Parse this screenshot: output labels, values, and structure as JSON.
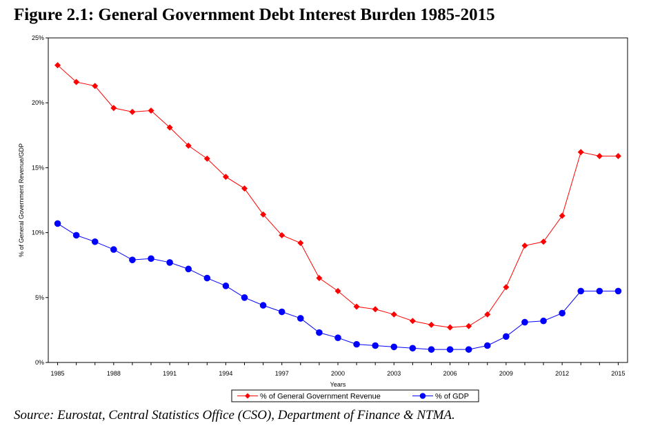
{
  "figure": {
    "title": "Figure 2.1: General Government Debt Interest Burden 1985-2015",
    "source": "Source: Eurostat, Central Statistics Office (CSO), Department of Finance & NTMA."
  },
  "colors": {
    "revenue": "#ff0000",
    "gdp": "#0000ff",
    "axis": "#000000"
  },
  "chart_data": {
    "type": "line",
    "title": "General Government Debt Interest Burden 1985-2015",
    "xlabel": "Years",
    "ylabel": "% of General Government Revenue/GDP",
    "ylim": [
      0,
      25
    ],
    "yticks": [
      0,
      5,
      10,
      15,
      20,
      25
    ],
    "ytick_labels": [
      "0%",
      "5%",
      "10%",
      "15%",
      "20%",
      "25%"
    ],
    "xticks": [
      1985,
      1988,
      1991,
      1994,
      1997,
      2000,
      2003,
      2006,
      2009,
      2012,
      2015
    ],
    "xtick_labels": [
      "1985",
      "1988",
      "1991",
      "1994",
      "1997",
      "2000",
      "2003",
      "2006",
      "2009",
      "2012",
      "2015"
    ],
    "grid": false,
    "legend_position": "bottom-center",
    "x": [
      1985,
      1986,
      1987,
      1988,
      1989,
      1990,
      1991,
      1992,
      1993,
      1994,
      1995,
      1996,
      1997,
      1998,
      1999,
      2000,
      2001,
      2002,
      2003,
      2004,
      2005,
      2006,
      2007,
      2008,
      2009,
      2010,
      2011,
      2012,
      2013,
      2014,
      2015
    ],
    "series": [
      {
        "name": "% of General Government Revenue",
        "marker": "diamond",
        "values": [
          22.9,
          21.6,
          21.3,
          19.6,
          19.3,
          19.4,
          18.1,
          16.7,
          15.7,
          14.3,
          13.4,
          11.4,
          9.8,
          9.2,
          6.5,
          5.5,
          4.3,
          4.1,
          3.7,
          3.2,
          2.9,
          2.7,
          2.8,
          3.7,
          5.8,
          9.0,
          9.3,
          11.3,
          16.2,
          15.9,
          15.9
        ]
      },
      {
        "name": "% of GDP",
        "marker": "circle",
        "values": [
          10.7,
          9.8,
          9.3,
          8.7,
          7.9,
          8.0,
          7.7,
          7.2,
          6.5,
          5.9,
          5.0,
          4.4,
          3.9,
          3.4,
          2.3,
          1.9,
          1.4,
          1.3,
          1.2,
          1.1,
          1.0,
          1.0,
          1.0,
          1.3,
          2.0,
          3.1,
          3.2,
          3.8,
          5.5,
          5.5,
          5.5
        ]
      }
    ]
  }
}
